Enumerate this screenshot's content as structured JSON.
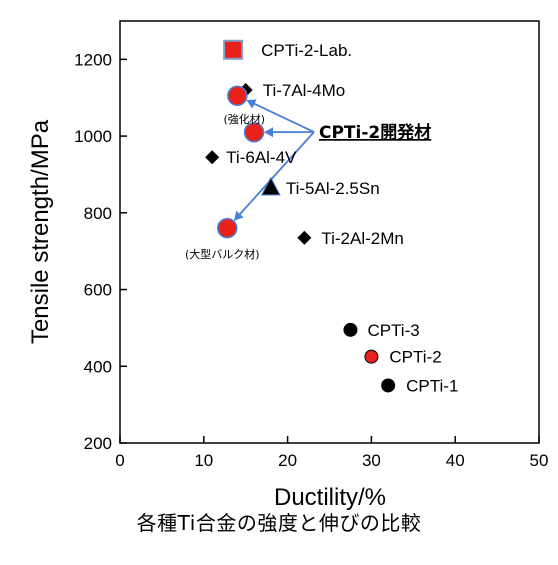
{
  "chart_data": {
    "type": "scatter",
    "xlabel": "Ductility/%",
    "ylabel": "Tensile strength/MPa",
    "xlim": [
      0,
      50
    ],
    "ylim": [
      200,
      1300
    ],
    "x_ticks": [
      0,
      10,
      20,
      30,
      40,
      50
    ],
    "y_ticks": [
      200,
      400,
      600,
      800,
      1000,
      1200
    ],
    "grid": false,
    "caption": "各種Ti合金の強度と伸びの比較",
    "points": [
      {
        "label": "CPTi-2-Lab.",
        "x": 13.5,
        "y": 1225,
        "marker": "square",
        "color": "#e8211b",
        "edge": "#7f9fc8"
      },
      {
        "label": "Ti-7Al-4Mo",
        "x": 15,
        "y": 1120,
        "marker": "diamond",
        "color": "#000000"
      },
      {
        "label": "Ti-6Al-4V",
        "x": 11,
        "y": 945,
        "marker": "diamond",
        "color": "#000000"
      },
      {
        "label": "Ti-5Al-2.5Sn",
        "x": 18,
        "y": 865,
        "marker": "triangle",
        "color": "#000000"
      },
      {
        "label": "Ti-2Al-2Mn",
        "x": 22,
        "y": 735,
        "marker": "diamond",
        "color": "#000000"
      },
      {
        "label": "CPTi-3",
        "x": 27.5,
        "y": 495,
        "marker": "circle",
        "color": "#000000"
      },
      {
        "label": "CPTi-2",
        "x": 30,
        "y": 425,
        "marker": "circle",
        "color": "#e8211b"
      },
      {
        "label": "CPTi-1",
        "x": 32,
        "y": 350,
        "marker": "circle",
        "color": "#000000"
      }
    ],
    "developed_series": {
      "label": "CPTi-2開発材",
      "color": "#e8211b",
      "arrow_color": "#4a7fd8",
      "points": [
        {
          "x": 14,
          "y": 1105,
          "note": "(強化材)"
        },
        {
          "x": 16,
          "y": 1010,
          "note": ""
        },
        {
          "x": 12.8,
          "y": 760,
          "note": "(大型バルク材)"
        }
      ]
    }
  }
}
